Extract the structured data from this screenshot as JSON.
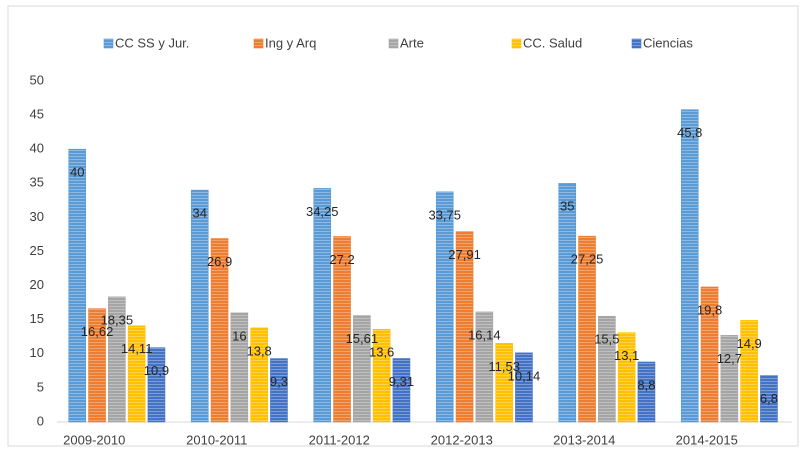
{
  "chart_data": {
    "type": "bar",
    "categories": [
      "2009-2010",
      "2010-2011",
      "2011-2012",
      "2012-2013",
      "2013-2014",
      "2014-2015"
    ],
    "series": [
      {
        "name": "CC SS y Jur.",
        "color": "#5b9bd5",
        "values": [
          40,
          34,
          34.25,
          33.75,
          35,
          45.8
        ],
        "value_labels": [
          "40",
          "34",
          "34,25",
          "33,75",
          "35",
          "45,8"
        ]
      },
      {
        "name": "Ing y Arq",
        "color": "#ed7d31",
        "values": [
          16.62,
          26.9,
          27.2,
          27.91,
          27.25,
          19.8
        ],
        "value_labels": [
          "16,62",
          "26,9",
          "27,2",
          "27,91",
          "27,25",
          "19,8"
        ]
      },
      {
        "name": "Arte",
        "color": "#a5a5a5",
        "values": [
          18.35,
          16,
          15.61,
          16.14,
          15.5,
          12.7
        ],
        "value_labels": [
          "18,35",
          "16",
          "15,61",
          "16,14",
          "15,5",
          "12,7"
        ]
      },
      {
        "name": "CC. Salud",
        "color": "#ffc000",
        "values": [
          14.11,
          13.8,
          13.6,
          11.53,
          13.1,
          14.9
        ],
        "value_labels": [
          "14,11",
          "13,8",
          "13,6",
          "11,53",
          "13,1",
          "14,9"
        ]
      },
      {
        "name": "Ciencias",
        "color": "#4472c4",
        "values": [
          10.9,
          9.3,
          9.31,
          10.14,
          8.8,
          6.8
        ],
        "value_labels": [
          "10,9",
          "9,3",
          "9,31",
          "10,14",
          "8,8",
          "6,8"
        ]
      }
    ],
    "ylim": [
      0,
      50
    ],
    "yticks": [
      0,
      5,
      10,
      15,
      20,
      25,
      30,
      35,
      40,
      45,
      50
    ],
    "grid": false,
    "legend": "top"
  }
}
